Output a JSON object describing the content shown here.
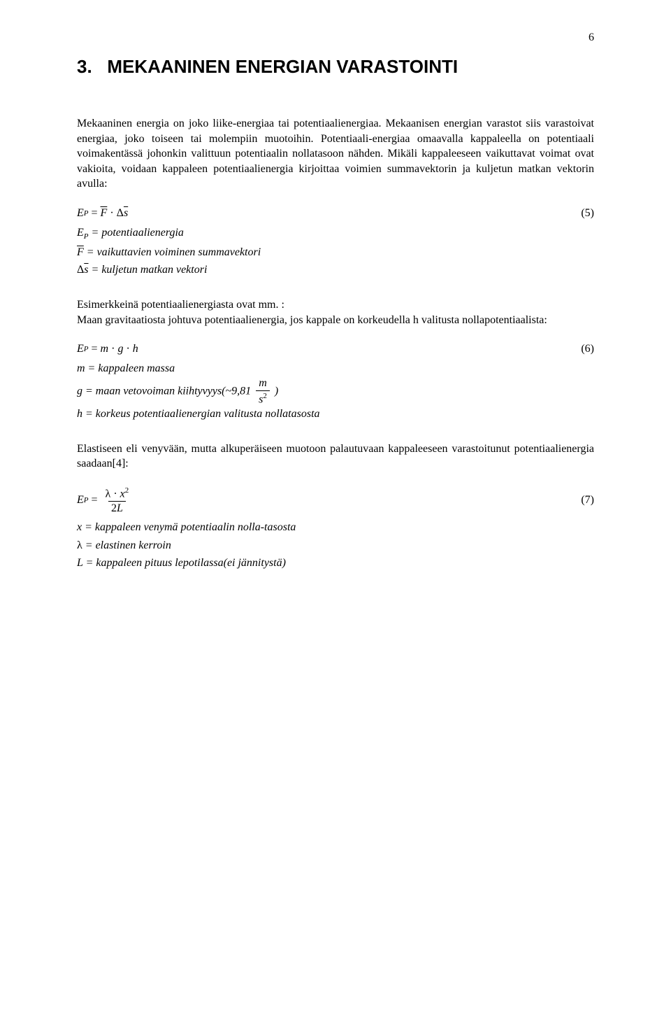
{
  "page": {
    "number": "6"
  },
  "section": {
    "number": "3.",
    "title": "MEKAANINEN ENERGIAN VARASTOINTI"
  },
  "paragraphs": {
    "p1": "Mekaaninen energia on joko liike-energiaa tai potentiaalienergiaa. Mekaanisen energian varastot siis varastoivat energiaa, joko toiseen tai molempiin muotoihin. Potentiaali-energiaa omaavalla kappaleella on potentiaali voimakentässä johonkin valittuun potentiaalin nollatasoon nähden. Mikäli kappaleeseen vaikuttavat voimat ovat vakioita, voidaan kappaleen potentiaalienergia kirjoittaa voimien summavektorin ja kuljetun matkan vektorin avulla:",
    "p2a": "Esimerkkeinä potentiaalienergiasta ovat mm. :",
    "p2b": "Maan gravitaatiosta johtuva potentiaalienergia, jos kappale on korkeudella h valitusta nollapotentiaalista:",
    "p3": "Elastiseen eli venyvään, mutta alkuperäiseen muotoon palautuvaan kappaleeseen varastoitunut potentiaalienergia saadaan[4]:"
  },
  "eq5": {
    "num": "(5)",
    "def_Ep": " = potentiaalienergia",
    "def_F": " = vaikuttavien voiminen summavektori",
    "def_ds": " = kuljetun matkan vektori"
  },
  "eq6": {
    "num": "(6)",
    "def_m": "m = kappaleen massa",
    "def_g_pre": "g = maan vetovoiman kiihtyvyys(~9,81 ",
    "def_g_post": " )",
    "def_h": "h = korkeus potentiaalienergian valitusta nollatasosta"
  },
  "eq7": {
    "num": "(7)",
    "def_x": "x = kappaleen venymä potentiaalin nolla-tasosta",
    "def_lambda": " = elastinen kerroin",
    "def_L": "L = kappaleen pituus lepotilassa(ei jännitystä)"
  },
  "symbols": {
    "E": "E",
    "P": "P",
    "F": "F",
    "s": "s",
    "delta": "Δ",
    "dot": "·",
    "eq": "=",
    "m": "m",
    "g": "g",
    "h": "h",
    "lambda": "λ",
    "x": "x",
    "two": "2",
    "L": "L"
  }
}
